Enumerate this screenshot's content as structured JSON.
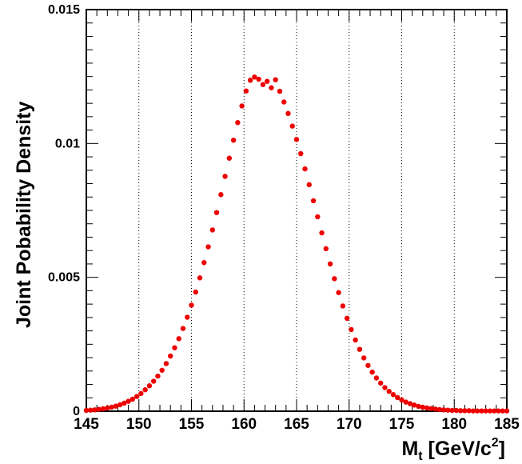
{
  "chart_data": {
    "type": "scatter",
    "xlabel": {
      "main": "M",
      "subscript": "t",
      "units_pre": " [GeV/c",
      "superscript": "2",
      "units_post": "]"
    },
    "ylabel": "Joint Pobability Density",
    "xlim": [
      145,
      185
    ],
    "ylim": [
      0,
      0.015
    ],
    "xticks": [
      "145",
      "150",
      "155",
      "160",
      "165",
      "170",
      "175",
      "180",
      "185"
    ],
    "xtick_values": [
      145,
      150,
      155,
      160,
      165,
      170,
      175,
      180,
      185
    ],
    "yticks": [
      "0",
      "0.005",
      "0.01",
      "0.015"
    ],
    "ytick_values": [
      0,
      0.005,
      0.01,
      0.015
    ],
    "grid_x": "dotted vertical lines at major x ticks",
    "grid_y": false,
    "marker_color": "#ee0000",
    "series": [
      {
        "x": [
          145.0,
          145.4,
          145.8,
          146.2,
          146.6,
          147.0,
          147.4,
          147.8,
          148.2,
          148.6,
          149.0,
          149.4,
          149.8,
          150.2,
          150.6,
          151.0,
          151.4,
          151.8,
          152.2,
          152.6,
          153.0,
          153.4,
          153.8,
          154.2,
          154.6,
          155.0,
          155.4,
          155.8,
          156.2,
          156.6,
          157.0,
          157.4,
          157.8,
          158.2,
          158.6,
          159.0,
          159.4,
          159.8,
          160.2,
          160.6,
          161.0,
          161.4,
          161.8,
          162.2,
          162.6,
          163.0,
          163.4,
          163.8,
          164.2,
          164.6,
          165.0,
          165.4,
          165.8,
          166.2,
          166.6,
          167.0,
          167.4,
          167.8,
          168.2,
          168.6,
          169.0,
          169.4,
          169.8,
          170.2,
          170.6,
          171.0,
          171.4,
          171.8,
          172.2,
          172.6,
          173.0,
          173.4,
          173.8,
          174.2,
          174.6,
          175.0,
          175.4,
          175.8,
          176.2,
          176.6,
          177.0,
          177.4,
          177.8,
          178.2,
          178.6,
          179.0,
          179.4,
          179.8,
          180.2,
          180.6,
          181.0,
          181.4,
          181.8,
          182.2,
          182.6,
          183.0,
          183.4,
          183.8,
          184.2,
          184.6,
          185.0
        ],
        "y": [
          3e-05,
          4e-05,
          5e-05,
          7e-05,
          9e-05,
          0.00012,
          0.00015,
          0.00019,
          0.00024,
          0.0003,
          0.00037,
          0.00045,
          0.00055,
          0.00066,
          0.0008,
          0.00095,
          0.00112,
          0.00131,
          0.00153,
          0.00178,
          0.00206,
          0.00237,
          0.00271,
          0.00309,
          0.00351,
          0.00396,
          0.00445,
          0.00498,
          0.00555,
          0.00614,
          0.00677,
          0.00742,
          0.00809,
          0.00877,
          0.00945,
          0.01012,
          0.01078,
          0.0114,
          0.01196,
          0.01236,
          0.01248,
          0.0124,
          0.0122,
          0.01232,
          0.01208,
          0.01238,
          0.01195,
          0.01155,
          0.01112,
          0.01065,
          0.01015,
          0.00962,
          0.00905,
          0.00846,
          0.00786,
          0.00726,
          0.00666,
          0.00607,
          0.0055,
          0.00495,
          0.00443,
          0.00393,
          0.00347,
          0.00305,
          0.00266,
          0.00231,
          0.00199,
          0.00171,
          0.00146,
          0.00124,
          0.00105,
          0.00088,
          0.00074,
          0.00062,
          0.00051,
          0.00042,
          0.00034,
          0.00028,
          0.00023,
          0.00018,
          0.00015,
          0.00012,
          0.0001,
          8e-05,
          6e-05,
          5e-05,
          4e-05,
          3e-05,
          3e-05,
          2e-05,
          2e-05,
          2e-05,
          1e-05,
          1e-05,
          1e-05,
          1e-05,
          1e-05,
          1e-05,
          1e-05,
          1e-05,
          1e-05
        ]
      }
    ]
  }
}
